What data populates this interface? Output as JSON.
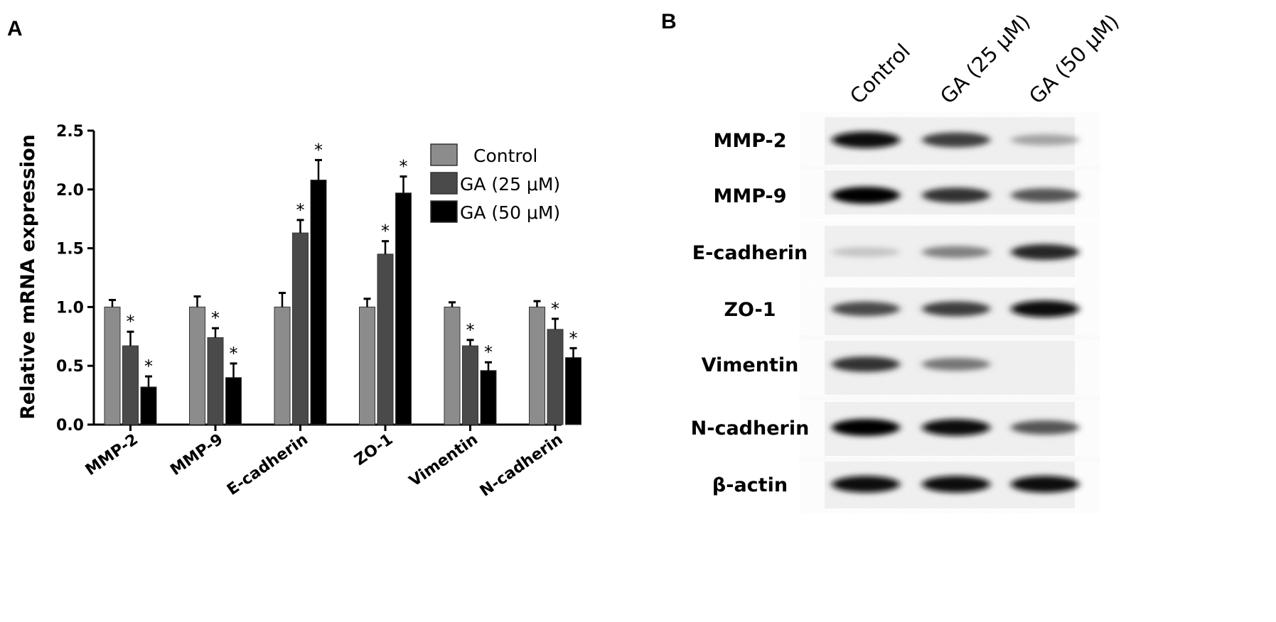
{
  "panels": {
    "a_label": "A",
    "b_label": "B"
  },
  "chart_data": {
    "type": "bar",
    "title": "",
    "xlabel": "",
    "ylabel": "Relative mRNA expression",
    "ylim": [
      0,
      2.5
    ],
    "yticks": [
      "0.0",
      "0.5",
      "1.0",
      "1.5",
      "2.0",
      "2.5"
    ],
    "categories": [
      "MMP-2",
      "MMP-9",
      "E-cadherin",
      "ZO-1",
      "Vimentin",
      "N-cadherin"
    ],
    "legend_position": "top-right",
    "grid": false,
    "significance_marker": "*",
    "series": [
      {
        "name": "Control",
        "color": "#8c8c8c",
        "values": [
          1.0,
          1.0,
          1.0,
          1.0,
          1.0,
          1.0
        ],
        "errors": [
          0.06,
          0.09,
          0.12,
          0.07,
          0.04,
          0.05
        ],
        "significant": [
          false,
          false,
          false,
          false,
          false,
          false
        ]
      },
      {
        "name": "GA (25 μM)",
        "color": "#4a4a4a",
        "values": [
          0.67,
          0.74,
          1.63,
          1.45,
          0.67,
          0.81
        ],
        "errors": [
          0.12,
          0.08,
          0.11,
          0.11,
          0.05,
          0.09
        ],
        "significant": [
          true,
          true,
          true,
          true,
          true,
          true
        ]
      },
      {
        "name": "GA (50 μM)",
        "color": "#000000",
        "values": [
          0.32,
          0.4,
          2.08,
          1.97,
          0.46,
          0.57
        ],
        "errors": [
          0.09,
          0.12,
          0.17,
          0.14,
          0.07,
          0.08
        ],
        "significant": [
          true,
          true,
          true,
          true,
          true,
          true
        ]
      }
    ]
  },
  "blot": {
    "lanes": [
      "Control",
      "GA (25 μM)",
      "GA (50 μM)"
    ],
    "rows": [
      {
        "protein": "MMP-2",
        "band_intensity": [
          0.95,
          0.75,
          0.3
        ]
      },
      {
        "protein": "MMP-9",
        "band_intensity": [
          1.0,
          0.8,
          0.65
        ]
      },
      {
        "protein": "E-cadherin",
        "band_intensity": [
          0.15,
          0.45,
          0.85
        ]
      },
      {
        "protein": "ZO-1",
        "band_intensity": [
          0.7,
          0.75,
          0.95
        ]
      },
      {
        "protein": "Vimentin",
        "band_intensity": [
          0.8,
          0.5,
          0.0
        ]
      },
      {
        "protein": "N-cadherin",
        "band_intensity": [
          1.0,
          0.95,
          0.65
        ]
      },
      {
        "protein": "β-actin",
        "band_intensity": [
          0.95,
          0.95,
          0.95
        ]
      }
    ]
  }
}
